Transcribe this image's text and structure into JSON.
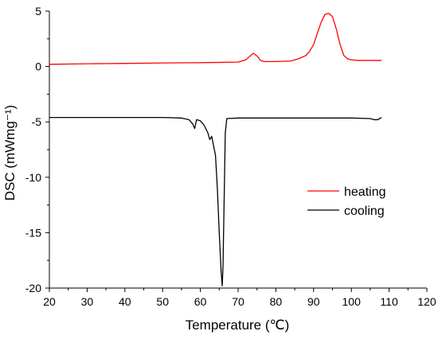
{
  "chart_data": {
    "type": "line",
    "xlabel": "Temperature  (℃)",
    "ylabel": "DSC (mWmg⁻¹)",
    "xlim": [
      20,
      120
    ],
    "ylim": [
      -20,
      5
    ],
    "xticks": [
      20,
      30,
      40,
      50,
      60,
      70,
      80,
      90,
      100,
      110,
      120
    ],
    "yticks": [
      5,
      0,
      -5,
      -10,
      -15,
      -20
    ],
    "grid": false,
    "legend_position": "center-right",
    "series": [
      {
        "name": "heating",
        "color": "#ff0000",
        "x": [
          20,
          30,
          40,
          50,
          60,
          65,
          70,
          72,
          73,
          74,
          75,
          76,
          77,
          80,
          84,
          86,
          88,
          89,
          90,
          91,
          92,
          93,
          94,
          95,
          96,
          97,
          98,
          99,
          100,
          102,
          105,
          108
        ],
        "y": [
          0.2,
          0.25,
          0.28,
          0.32,
          0.35,
          0.37,
          0.4,
          0.6,
          0.9,
          1.2,
          0.95,
          0.55,
          0.45,
          0.45,
          0.5,
          0.7,
          1.0,
          1.4,
          2.0,
          3.0,
          4.0,
          4.7,
          4.8,
          4.5,
          3.4,
          2.0,
          1.0,
          0.7,
          0.6,
          0.55,
          0.55,
          0.55
        ]
      },
      {
        "name": "cooling",
        "color": "#000000",
        "x": [
          20,
          30,
          40,
          50,
          55,
          57,
          58,
          58.5,
          59,
          60,
          61,
          62,
          62.5,
          63,
          64,
          64.5,
          65,
          65.5,
          65.8,
          66,
          66.3,
          66.6,
          67,
          70,
          80,
          90,
          100,
          105,
          106,
          107,
          108
        ],
        "y": [
          -4.6,
          -4.6,
          -4.6,
          -4.6,
          -4.65,
          -4.8,
          -5.2,
          -5.6,
          -4.8,
          -4.9,
          -5.3,
          -6.0,
          -6.6,
          -6.3,
          -8.0,
          -11.0,
          -15.0,
          -18.5,
          -19.8,
          -18.0,
          -12.0,
          -6.0,
          -4.7,
          -4.65,
          -4.65,
          -4.65,
          -4.65,
          -4.7,
          -4.8,
          -4.8,
          -4.6
        ]
      }
    ]
  }
}
